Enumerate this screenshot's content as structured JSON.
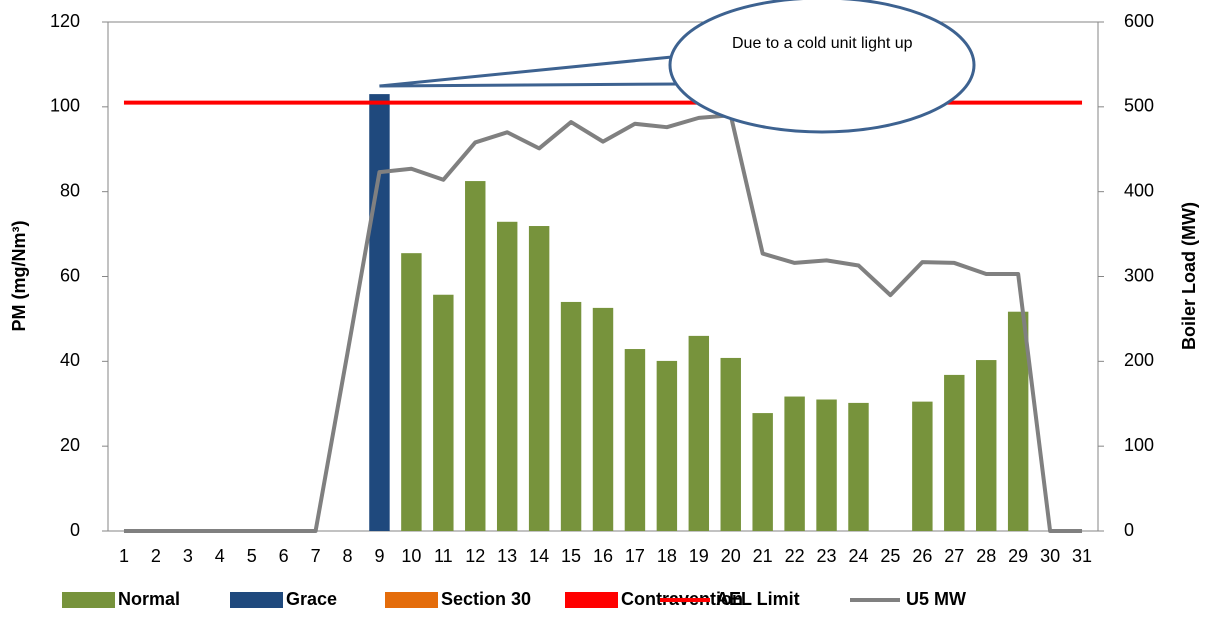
{
  "chart_data": {
    "type": "bar",
    "categories": [
      "1",
      "2",
      "3",
      "4",
      "5",
      "6",
      "7",
      "8",
      "9",
      "10",
      "11",
      "12",
      "13",
      "14",
      "15",
      "16",
      "17",
      "18",
      "19",
      "20",
      "21",
      "22",
      "23",
      "24",
      "25",
      "26",
      "27",
      "28",
      "29",
      "30",
      "31"
    ],
    "ylabel": "PM (mg/Nm³)",
    "y2label": "Boiler Load (MW)",
    "ylim": [
      0,
      120
    ],
    "yticks": [
      0,
      20,
      40,
      60,
      80,
      100,
      120
    ],
    "y2lim": [
      0,
      600
    ],
    "y2ticks": [
      0,
      100,
      200,
      300,
      400,
      500,
      600
    ],
    "annotation": "Due to a cold unit light up",
    "series": [
      {
        "name": "Normal",
        "type": "bar",
        "color": "#77933c",
        "values": [
          null,
          null,
          null,
          null,
          null,
          null,
          null,
          null,
          null,
          65.5,
          55.7,
          82.5,
          72.9,
          71.9,
          54,
          52.6,
          42.9,
          40.1,
          46,
          40.8,
          27.8,
          31.7,
          31,
          30.2,
          null,
          30.5,
          36.8,
          40.3,
          51.7,
          null,
          null
        ]
      },
      {
        "name": "Grace",
        "type": "bar",
        "color": "#1f497d",
        "values": [
          null,
          null,
          null,
          null,
          null,
          null,
          null,
          null,
          103,
          null,
          null,
          null,
          null,
          null,
          null,
          null,
          null,
          null,
          null,
          null,
          null,
          null,
          null,
          null,
          null,
          null,
          null,
          null,
          null,
          null,
          null
        ]
      },
      {
        "name": "Section 30",
        "type": "bar",
        "color": "#e46c0a",
        "values": [
          null,
          null,
          null,
          null,
          null,
          null,
          null,
          null,
          null,
          null,
          null,
          null,
          null,
          null,
          null,
          null,
          null,
          null,
          null,
          null,
          null,
          null,
          null,
          null,
          null,
          null,
          null,
          null,
          null,
          null,
          null
        ]
      },
      {
        "name": "Contravention",
        "type": "bar",
        "color": "#ff0000",
        "values": [
          null,
          null,
          null,
          null,
          null,
          null,
          null,
          null,
          null,
          null,
          null,
          null,
          null,
          null,
          null,
          null,
          null,
          null,
          null,
          null,
          null,
          null,
          null,
          null,
          null,
          null,
          null,
          null,
          null,
          null,
          null
        ]
      },
      {
        "name": "AEL Limit",
        "type": "line",
        "color": "#ff0000",
        "values": [
          101,
          101,
          101,
          101,
          101,
          101,
          101,
          101,
          101,
          101,
          101,
          101,
          101,
          101,
          101,
          101,
          101,
          101,
          101,
          101,
          101,
          101,
          101,
          101,
          101,
          101,
          101,
          101,
          101,
          101,
          101
        ]
      },
      {
        "name": "U5 MW",
        "type": "line",
        "axis": "y2",
        "color": "#808080",
        "values": [
          0,
          0,
          0,
          0,
          0,
          0,
          0,
          210,
          423,
          427,
          414,
          458,
          470,
          451,
          482,
          459,
          480,
          476,
          487,
          490,
          327,
          316,
          319,
          313,
          278,
          317,
          316,
          303,
          303,
          0,
          0
        ]
      }
    ]
  }
}
